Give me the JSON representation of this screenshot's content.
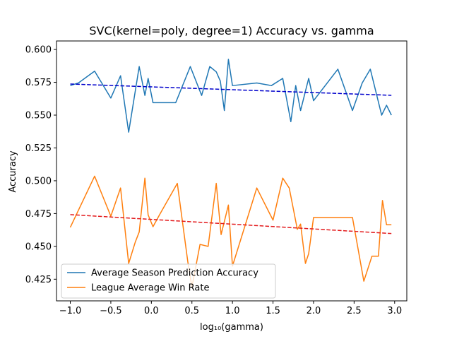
{
  "chart_data": {
    "type": "line",
    "title": "SVC(kernel=poly, degree=1) Accuracy vs. gamma",
    "xlabel": "log₁₀(gamma)",
    "ylabel": "Accuracy",
    "xlim": [
      -1.17,
      3.15
    ],
    "ylim": [
      0.4085,
      0.6065
    ],
    "xticks": [
      -1.0,
      -0.5,
      0.0,
      0.5,
      1.0,
      1.5,
      2.0,
      2.5,
      3.0
    ],
    "xtick_labels": [
      "−1.0",
      "−0.5",
      "0.0",
      "0.5",
      "1.0",
      "1.5",
      "2.0",
      "2.5",
      "3.0"
    ],
    "yticks": [
      0.425,
      0.45,
      0.475,
      0.5,
      0.525,
      0.55,
      0.575,
      0.6
    ],
    "ytick_labels": [
      "0.425",
      "0.450",
      "0.475",
      "0.500",
      "0.525",
      "0.550",
      "0.575",
      "0.600"
    ],
    "grid": false,
    "legend_position": "lower-left",
    "series": [
      {
        "name": "Average Season Prediction Accuracy",
        "color": "#1f77b4",
        "style": "solid",
        "points": [
          [
            -1.0,
            0.5725
          ],
          [
            -0.9,
            0.5745
          ],
          [
            -0.7,
            0.5835
          ],
          [
            -0.5,
            0.563
          ],
          [
            -0.38,
            0.58
          ],
          [
            -0.28,
            0.537
          ],
          [
            -0.15,
            0.587
          ],
          [
            -0.08,
            0.565
          ],
          [
            -0.04,
            0.578
          ],
          [
            0.02,
            0.5595
          ],
          [
            0.3,
            0.5595
          ],
          [
            0.48,
            0.587
          ],
          [
            0.62,
            0.565
          ],
          [
            0.72,
            0.587
          ],
          [
            0.8,
            0.583
          ],
          [
            0.85,
            0.576
          ],
          [
            0.9,
            0.5535
          ],
          [
            0.95,
            0.5925
          ],
          [
            1.0,
            0.5725
          ],
          [
            1.3,
            0.5745
          ],
          [
            1.48,
            0.5725
          ],
          [
            1.62,
            0.578
          ],
          [
            1.72,
            0.545
          ],
          [
            1.78,
            0.5725
          ],
          [
            1.84,
            0.5535
          ],
          [
            1.94,
            0.578
          ],
          [
            2.0,
            0.561
          ],
          [
            2.3,
            0.585
          ],
          [
            2.48,
            0.5535
          ],
          [
            2.6,
            0.5745
          ],
          [
            2.7,
            0.585
          ],
          [
            2.84,
            0.55
          ],
          [
            2.9,
            0.5575
          ],
          [
            2.96,
            0.55
          ]
        ]
      },
      {
        "name": "League Average Win Rate",
        "color": "#ff7f0e",
        "style": "solid",
        "points": [
          [
            -1.0,
            0.4645
          ],
          [
            -0.7,
            0.5035
          ],
          [
            -0.5,
            0.473
          ],
          [
            -0.38,
            0.4945
          ],
          [
            -0.28,
            0.437
          ],
          [
            -0.2,
            0.453
          ],
          [
            -0.15,
            0.461
          ],
          [
            -0.08,
            0.502
          ],
          [
            -0.04,
            0.474
          ],
          [
            0.02,
            0.465
          ],
          [
            0.1,
            0.474
          ],
          [
            0.32,
            0.498
          ],
          [
            0.45,
            0.438
          ],
          [
            0.5,
            0.419
          ],
          [
            0.6,
            0.4515
          ],
          [
            0.7,
            0.45
          ],
          [
            0.8,
            0.498
          ],
          [
            0.86,
            0.459
          ],
          [
            0.95,
            0.4815
          ],
          [
            1.0,
            0.435
          ],
          [
            1.3,
            0.4945
          ],
          [
            1.5,
            0.47
          ],
          [
            1.62,
            0.502
          ],
          [
            1.7,
            0.4945
          ],
          [
            1.8,
            0.463
          ],
          [
            1.84,
            0.467
          ],
          [
            1.9,
            0.437
          ],
          [
            1.94,
            0.4445
          ],
          [
            2.0,
            0.472
          ],
          [
            2.48,
            0.472
          ],
          [
            2.62,
            0.4235
          ],
          [
            2.72,
            0.4425
          ],
          [
            2.8,
            0.4425
          ],
          [
            2.85,
            0.485
          ],
          [
            2.9,
            0.4665
          ],
          [
            2.96,
            0.4665
          ]
        ]
      },
      {
        "color": "#0000cc",
        "style": "dashed",
        "points": [
          [
            -1.0,
            0.5737
          ],
          [
            2.96,
            0.5651
          ]
        ]
      },
      {
        "color": "#e31a1c",
        "style": "dashed",
        "points": [
          [
            -1.0,
            0.4742
          ],
          [
            2.96,
            0.4598
          ]
        ]
      }
    ]
  }
}
